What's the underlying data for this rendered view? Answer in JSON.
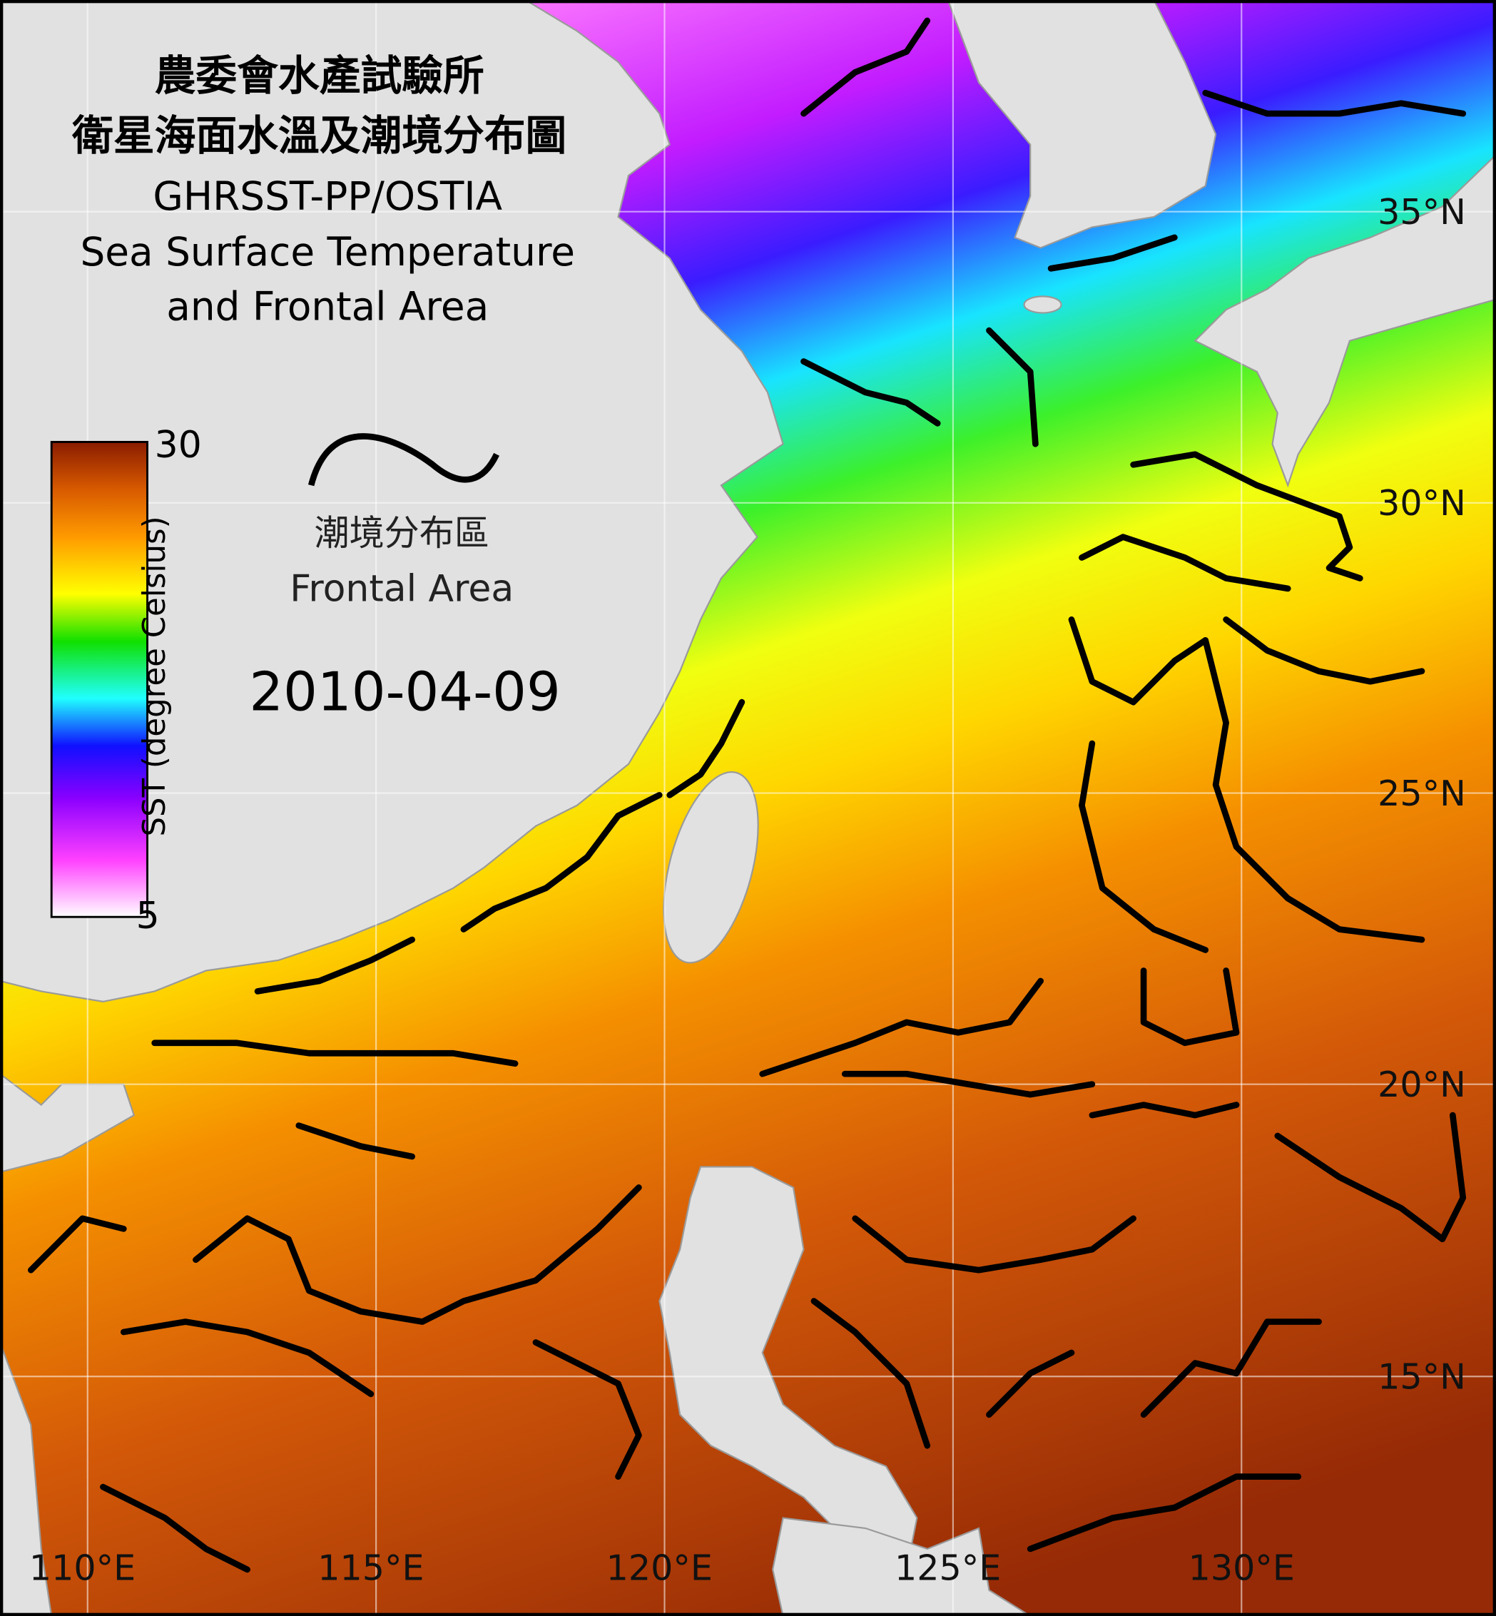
{
  "header": {
    "title_lines": [
      "農委會水產試驗所",
      "衛星海面水溫及潮境分布圖",
      "GHRSST-PP/OSTIA",
      "Sea Surface Temperature",
      "and Frontal Area"
    ]
  },
  "legend": {
    "frontal_label_zh": "潮境分布區",
    "frontal_label_en": "Frontal Area"
  },
  "date": "2010-04-09",
  "colorbar": {
    "label": "SST (degree Celsius)",
    "max": 30,
    "min": 5
  },
  "map": {
    "lat_labels": [
      "35°N",
      "30°N",
      "25°N",
      "20°N",
      "15°N"
    ],
    "lon_labels": [
      "110°E",
      "115°E",
      "120°E",
      "125°E",
      "130°E"
    ]
  }
}
